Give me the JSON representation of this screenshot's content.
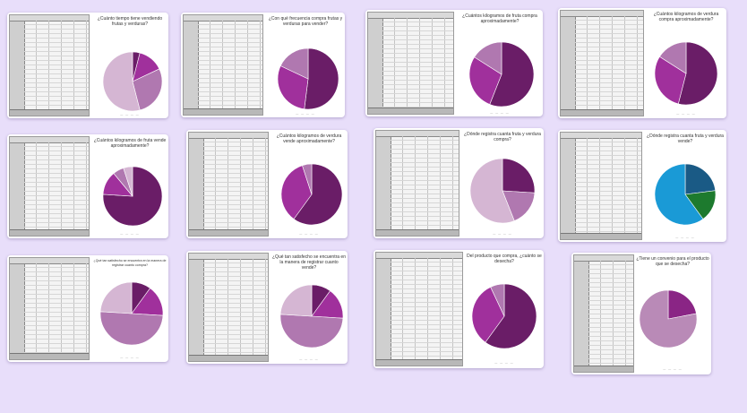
{
  "cards": [
    {
      "title": "¿Cuánto tiempo tiene vendiendo frutas y verduras?",
      "slices": [
        0.04,
        0.14,
        0.28,
        0.54
      ],
      "colors": [
        "#6a1d67",
        "#a0309c",
        "#b078b0",
        "#d5b6d3"
      ]
    },
    {
      "title": "¿Con qué frecuencia compra frutas y verduras para vender?",
      "slices": [
        0.52,
        0.3,
        0.18
      ],
      "colors": [
        "#6a1d67",
        "#a0309c",
        "#b078b0"
      ]
    },
    {
      "title": "¿Cuántos kilogramos de fruta compra aproximadamente?",
      "slices": [
        0.56,
        0.28,
        0.16
      ],
      "colors": [
        "#6a1d67",
        "#a0309c",
        "#b078b0"
      ]
    },
    {
      "title": "¿Cuántos kilogramos de verdura compra aproximadamente?",
      "slices": [
        0.54,
        0.3,
        0.16
      ],
      "colors": [
        "#6a1d67",
        "#a0309c",
        "#b078b0"
      ]
    },
    {
      "title": "¿Cuántos kilogramos de fruta vende aproximadamente?",
      "slices": [
        0.76,
        0.13,
        0.06,
        0.05
      ],
      "colors": [
        "#6a1d67",
        "#a0309c",
        "#b078b0",
        "#d5b6d3"
      ]
    },
    {
      "title": "¿Cuántos kilogramos de verdura vende aproximadamente?",
      "slices": [
        0.6,
        0.35,
        0.05
      ],
      "colors": [
        "#6a1d67",
        "#a0309c",
        "#b078b0"
      ]
    },
    {
      "title": "¿Dónde registra cuanta fruta y verdura compra?",
      "slices": [
        0.26,
        0.18,
        0.56
      ],
      "colors": [
        "#6a1d67",
        "#b078b0",
        "#d5b6d3"
      ]
    },
    {
      "title": "¿Dónde registra cuanta fruta y verdura vende?",
      "slices": [
        0.23,
        0.17,
        0.6
      ],
      "colors": [
        "#1a5a85",
        "#1d7a2e",
        "#1a9ad6"
      ]
    },
    {
      "title": "¿Qué tan satisfecho se encuentra en la manera de registrar cuanto compra?",
      "slices": [
        0.1,
        0.16,
        0.5,
        0.24
      ],
      "colors": [
        "#6a1d67",
        "#a0309c",
        "#b078b0",
        "#d5b6d3"
      ]
    },
    {
      "title": "¿Qué tan satisfecho se encuentra en la manera de registrar cuanto vende?",
      "slices": [
        0.1,
        0.16,
        0.5,
        0.24
      ],
      "colors": [
        "#6a1d67",
        "#a0309c",
        "#b078b0",
        "#d5b6d3"
      ]
    },
    {
      "title": "Del producto que compra, ¿cuánto se desecha?",
      "slices": [
        0.6,
        0.33,
        0.07
      ],
      "colors": [
        "#6a1d67",
        "#a0309c",
        "#b078b0"
      ]
    },
    {
      "title": "¿Tiene un convenio para el producto que se desecha?",
      "slices": [
        0.22,
        0.78
      ],
      "colors": [
        "#8a2585",
        "#b98ab7"
      ]
    }
  ]
}
